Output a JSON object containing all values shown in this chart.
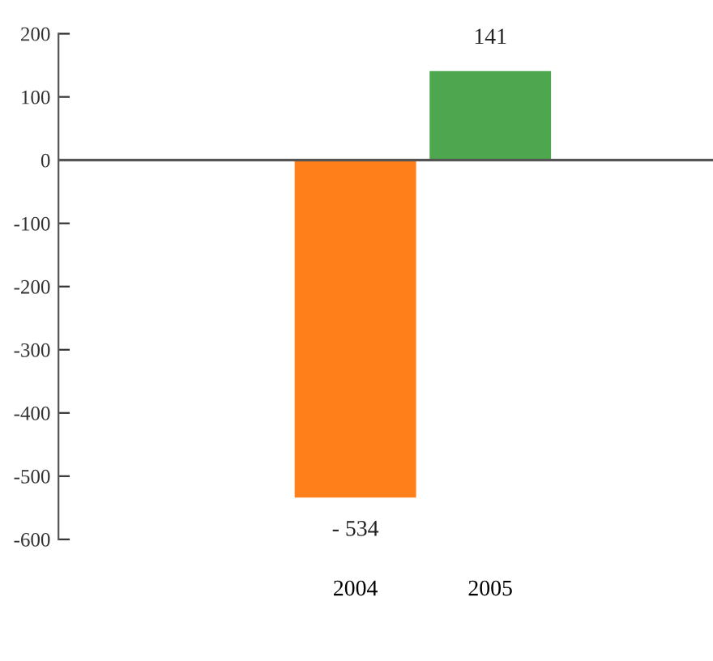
{
  "chart_data": {
    "type": "bar",
    "categories": [
      "2004",
      "2005"
    ],
    "values": [
      -534,
      141
    ],
    "colors": [
      "#ff7f1a",
      "#4ea64e"
    ],
    "value_labels": [
      "- 534",
      "141"
    ],
    "ylim": [
      -600,
      200
    ],
    "yticks": [
      {
        "value": -600,
        "label": "-600"
      },
      {
        "value": -500,
        "label": "-500"
      },
      {
        "value": -400,
        "label": "-400"
      },
      {
        "value": -300,
        "label": "-300"
      },
      {
        "value": -200,
        "label": "-200"
      },
      {
        "value": -100,
        "label": "-100"
      },
      0,
      100,
      200
    ],
    "ref_lines": [
      {
        "axis": "y",
        "value": 0,
        "color": "#555555"
      }
    ],
    "grid": false,
    "legend": false
  }
}
